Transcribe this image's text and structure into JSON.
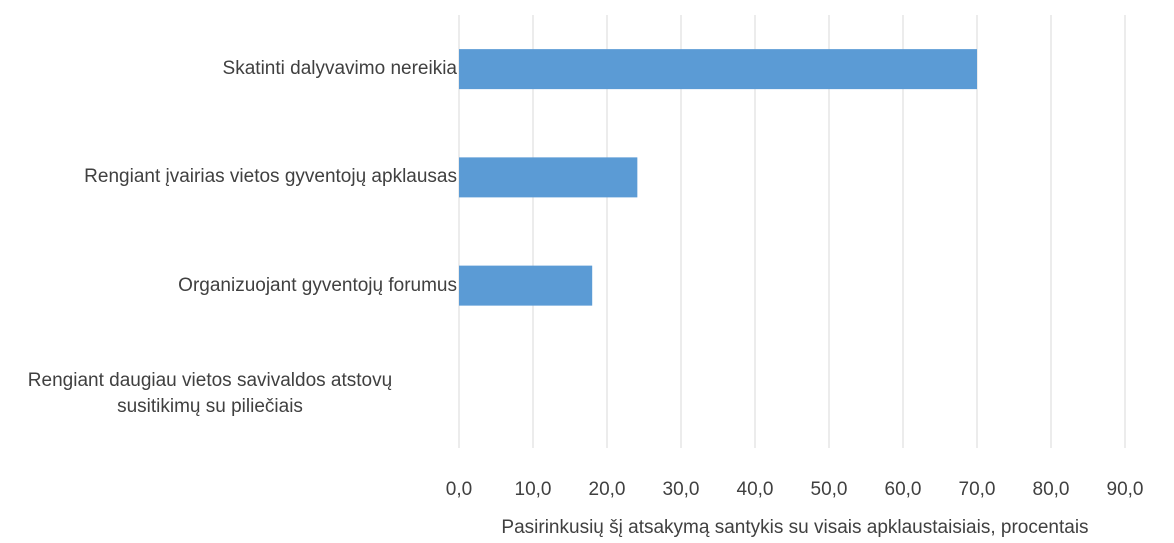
{
  "chart_data": {
    "type": "bar",
    "orientation": "horizontal",
    "categories": [
      "Skatinti dalyvavimo nereikia",
      "Rengiant įvairias vietos gyventojų apklausas",
      "Organizuojant gyventojų forumus",
      "Rengiant daugiau vietos savivaldos atstovų susitikimų su piliečiais"
    ],
    "values": [
      70.0,
      24.1,
      18.0,
      0
    ],
    "color": "#5b9bd5",
    "xlabel": "Pasirinkusių šį atsakymą santykis su visais apklaustaisiais, procentais",
    "xlim": [
      0,
      90
    ],
    "xticks": [
      {
        "value": 0,
        "label": "0,0"
      },
      {
        "value": 10,
        "label": "10,0"
      },
      {
        "value": 20,
        "label": "20,0"
      },
      {
        "value": 30,
        "label": "30,0"
      },
      {
        "value": 40,
        "label": "40,0"
      },
      {
        "value": 50,
        "label": "50,0"
      },
      {
        "value": 60,
        "label": "60,0"
      },
      {
        "value": 70,
        "label": "70,0"
      },
      {
        "value": 80,
        "label": "80,0"
      },
      {
        "value": 90,
        "label": "90,0"
      }
    ],
    "grid": true
  }
}
